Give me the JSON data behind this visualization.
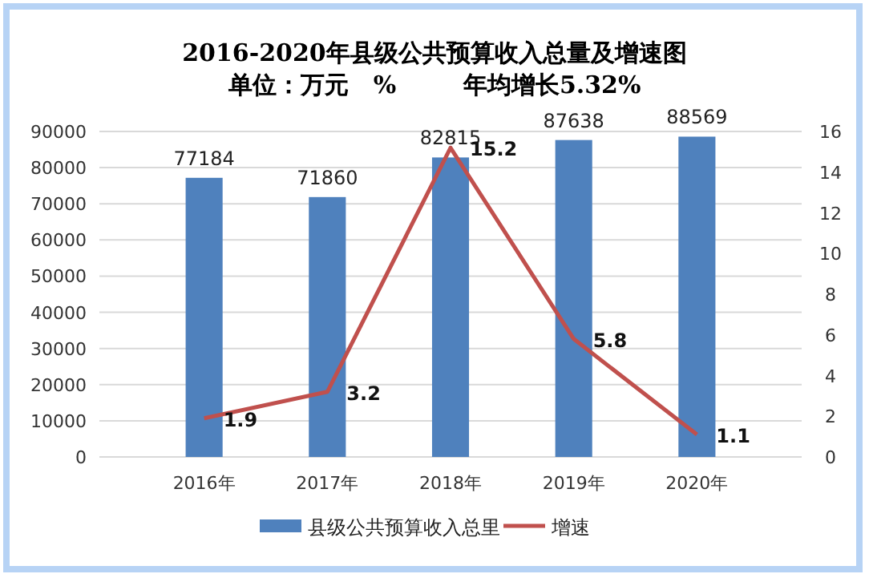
{
  "chart_data": {
    "type": "bar",
    "title": "2016-2020年县级公共预算收入总量及增速图",
    "subtitle": "单位：万元   %        年均增长5.32%",
    "categories": [
      "2016年",
      "2017年",
      "2018年",
      "2019年",
      "2020年"
    ],
    "series": [
      {
        "name": "县级公共预算收入总里",
        "color": "#4f81bd",
        "values": [
          77184,
          71860,
          82815,
          87638,
          88569
        ]
      },
      {
        "name": "增速",
        "type": "line",
        "axis": "y2",
        "color": "#c0504d",
        "values": [
          1.9,
          3.2,
          15.2,
          5.8,
          1.1
        ]
      }
    ],
    "ylim": [
      0,
      90000
    ],
    "yticks": [
      0,
      10000,
      20000,
      30000,
      40000,
      50000,
      60000,
      70000,
      80000,
      90000
    ],
    "y2lim": [
      0,
      16
    ],
    "y2ticks": [
      0,
      2,
      4,
      6,
      8,
      10,
      12,
      14,
      16
    ],
    "grid": "y",
    "legend": "bottom",
    "data_labels": true,
    "marker": "none"
  }
}
